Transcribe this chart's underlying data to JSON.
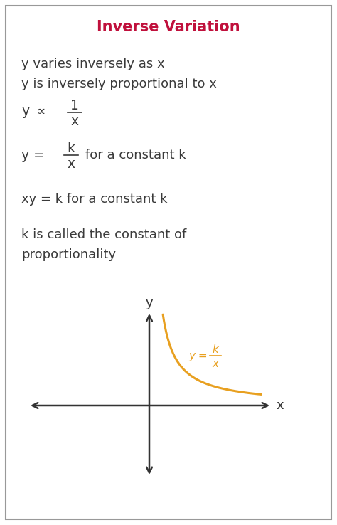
{
  "title": "Inverse Variation",
  "title_color": "#C0103C",
  "background_color": "#ffffff",
  "border_color": "#999999",
  "text_color": "#3a3a3a",
  "orange_color": "#E8A020",
  "line1": "y varies inversely as x",
  "line2": "y is inversely proportional to x",
  "formula3": "xy = k for a constant k",
  "formula4_line1": "k is called the constant of",
  "formula4_line2": "proportionality",
  "fs_main": 13.0,
  "fs_formula": 13.5,
  "fs_title": 15.0
}
